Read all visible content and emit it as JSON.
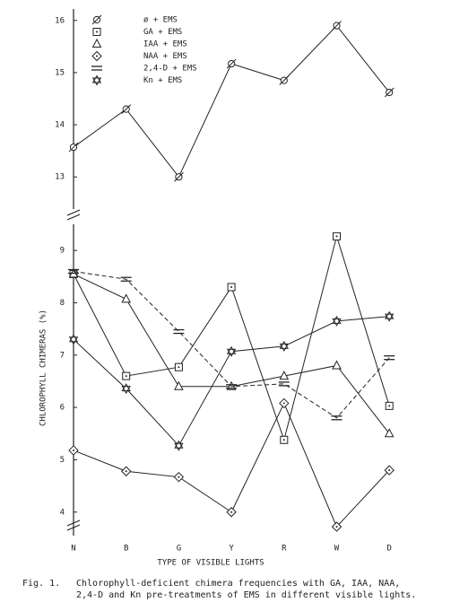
{
  "chart_data": {
    "type": "line",
    "x_label": "TYPE OF VISIBLE LIGHTS",
    "y_label": "CHLOROPHYLL CHIMERAS (%)",
    "categories": [
      "N",
      "B",
      "G",
      "Y",
      "R",
      "W",
      "D"
    ],
    "ylim": [
      3.55,
      9.5
    ],
    "yticks": [
      4,
      5,
      6,
      7,
      8,
      9
    ],
    "y2lim": [
      12.35,
      16.22
    ],
    "y2ticks": [
      13,
      14,
      15,
      16
    ],
    "series": [
      {
        "name": "ø + EMS",
        "marker": "circle-slash",
        "axis": "y2",
        "color": "#222",
        "values": [
          13.57,
          14.3,
          13.0,
          15.17,
          14.85,
          15.9,
          14.62
        ]
      },
      {
        "name": "GA + EMS",
        "marker": "square",
        "color": "#222",
        "values": [
          8.55,
          6.6,
          6.77,
          8.3,
          5.38,
          9.27,
          6.03
        ]
      },
      {
        "name": "IAA + EMS",
        "marker": "triangle",
        "color": "#222",
        "values": [
          8.55,
          8.07,
          6.4,
          6.4,
          6.6,
          6.8,
          5.5
        ]
      },
      {
        "name": "NAA + EMS",
        "marker": "diamond",
        "color": "#222",
        "values": [
          5.18,
          4.78,
          4.67,
          4.0,
          6.08,
          3.72,
          4.8
        ]
      },
      {
        "name": "2,4-D + EMS",
        "marker": "hash",
        "dashed": true,
        "color": "#222",
        "values": [
          8.6,
          8.45,
          7.45,
          6.4,
          6.45,
          5.8,
          6.95
        ]
      },
      {
        "name": "Kn + EMS",
        "marker": "star",
        "color": "#222",
        "values": [
          7.3,
          6.36,
          5.27,
          7.07,
          7.17,
          7.65,
          7.74
        ]
      }
    ]
  },
  "caption": {
    "label": "Fig. 1.",
    "lines": [
      "Chlorophyll-deficient chimera frequencies with GA, IAA, NAA,",
      "2,4-D and Kn pre-treatments of EMS in different visible lights."
    ]
  }
}
